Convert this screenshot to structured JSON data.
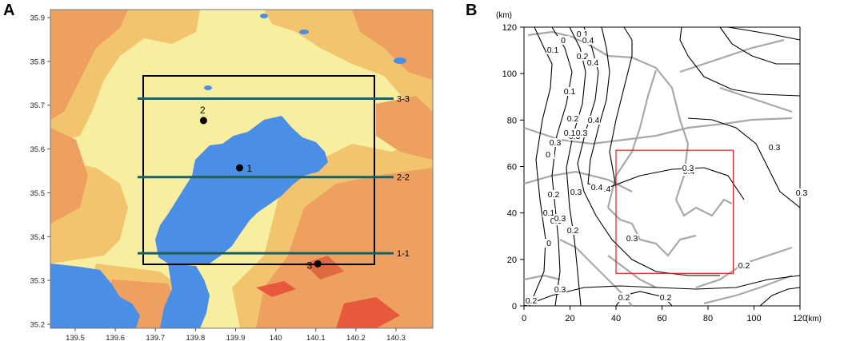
{
  "panel_a": {
    "label": "A",
    "x_ticks": [
      "139.5",
      "139.6",
      "139.7",
      "139.8",
      "139.9",
      "140",
      "140.1",
      "140.2",
      "140.3"
    ],
    "y_ticks": [
      "35.9",
      "35.8",
      "35.7",
      "35.6",
      "35.5",
      "35.4",
      "35.3",
      "35.2"
    ],
    "transects": [
      {
        "label": "3-3",
        "lat": 35.715
      },
      {
        "label": "2-2",
        "lat": 35.536
      },
      {
        "label": "1-1",
        "lat": 35.362
      }
    ],
    "points": [
      {
        "label": "2",
        "lon": 139.82,
        "lat": 35.665
      },
      {
        "label": "1",
        "lon": 139.91,
        "lat": 35.557
      },
      {
        "label": "3",
        "lon": 140.105,
        "lat": 35.338
      }
    ],
    "colors": {
      "water": "#4a8ee6",
      "low_land": "#f8eea0",
      "mid_land": "#f3c46e",
      "high_land": "#eea060",
      "peak": "#e8583c",
      "transect": "#1d5f5a",
      "box": "#000000"
    }
  },
  "panel_b": {
    "label": "B",
    "unit_top": "(km)",
    "unit_right": "(km)",
    "x_ticks": [
      "0",
      "20",
      "40",
      "60",
      "80",
      "100",
      "120"
    ],
    "y_ticks": [
      "0",
      "20",
      "40",
      "60",
      "80",
      "100",
      "120"
    ],
    "contour_labels": [
      "0.1",
      "0.4",
      "0",
      "0.1",
      "0.2",
      "0.4",
      "0.1",
      "0.2",
      "0.3",
      "0.3",
      "0.1",
      "0.3",
      "0.4",
      "0.4",
      "0.3",
      "0",
      "0.2",
      "0.4",
      "0.4",
      "0.3",
      "0.3",
      "0.1",
      "0.3",
      "0",
      "0.2",
      "0.3",
      "0.3",
      "0.3",
      "0.2",
      "0.2",
      "0.3",
      "0.2",
      "0.2"
    ],
    "red_box_km": {
      "x0": 40,
      "x1": 91,
      "y0": 14,
      "y1": 67
    },
    "colors": {
      "contour": "#000000",
      "river": "#a8a8a8",
      "box": "#e02020"
    }
  }
}
